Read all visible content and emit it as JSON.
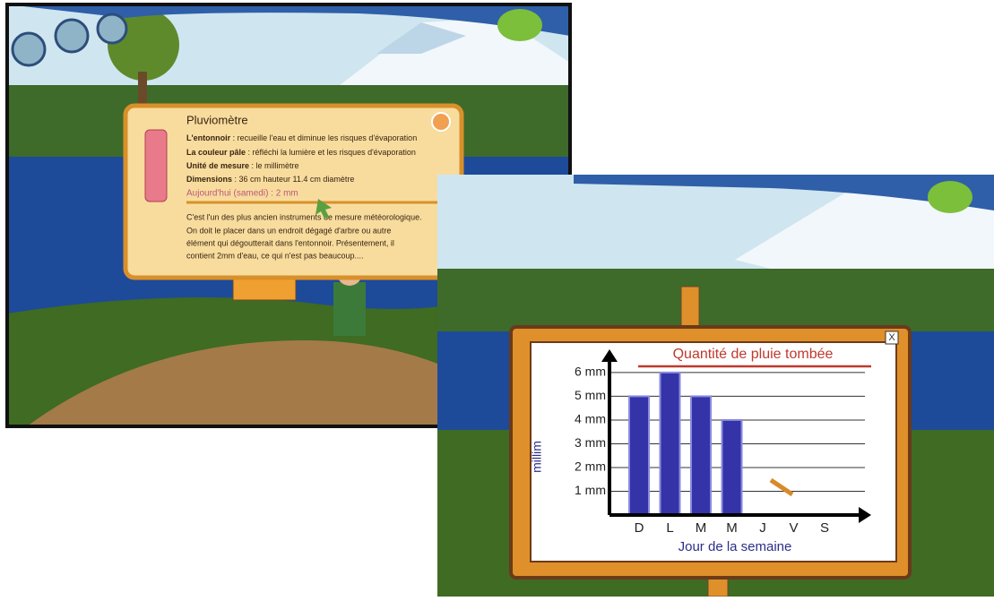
{
  "info_panel": {
    "title": "Pluviomètre",
    "lines": [
      {
        "label": "L'entonnoir",
        "text": " : recueille l'eau et diminue les risques d'évaporation"
      },
      {
        "label": "La couleur pâle",
        "text": " : réfléchi la lumière et les risques d'évaporation"
      },
      {
        "label": "Unité de mesure",
        "text": " : le millimètre"
      },
      {
        "label": "Dimensions",
        "text": " : 36 cm hauteur 11.4 cm diamètre"
      }
    ],
    "today": "Aujourd'hui (samedi) : 2 mm",
    "description": [
      "C'est l'un des plus ancien instruments de mesure météorologique.",
      "On doit le placer dans un endroit dégagé d'arbre ou autre",
      "élément qui dégoutterait dans l'entonnoir. Présentement, il",
      "contient 2mm d'eau, ce qui n'est pas beaucoup...."
    ]
  },
  "chart_close": "X",
  "chart_data": {
    "type": "bar",
    "title": "Quantité de pluie tombée",
    "x_label": "Jour de la semaine",
    "y_label": "millim",
    "categories": [
      "D",
      "L",
      "M",
      "M",
      "J",
      "V",
      "S"
    ],
    "values": [
      5,
      6,
      5,
      4,
      null,
      null,
      null
    ],
    "color": "#3434a8",
    "ylim": [
      0,
      6.6
    ],
    "yticks": [
      {
        "value": 1,
        "label": "1 mm"
      },
      {
        "value": 2,
        "label": "2 mm"
      },
      {
        "value": 3,
        "label": "3 mm"
      },
      {
        "value": 4,
        "label": "4 mm"
      },
      {
        "value": 5,
        "label": "5 mm"
      },
      {
        "value": 6,
        "label": "6 mm"
      }
    ],
    "grid": true
  }
}
